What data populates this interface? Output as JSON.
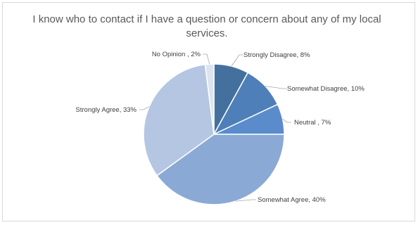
{
  "chart_data": {
    "type": "pie",
    "title": "I know who to contact if I have a question or concern about any of my local services.",
    "slices": [
      {
        "label": "Strongly Disagree, 8%",
        "value": 8,
        "color": "#44709e"
      },
      {
        "label": "Somewhat Disagree, 10%",
        "value": 10,
        "color": "#4f7fb8"
      },
      {
        "label": "Neutral    , 7%",
        "value": 7,
        "color": "#5a8ccc"
      },
      {
        "label": "Somewhat Agree, 40%",
        "value": 40,
        "color": "#8aa9d5"
      },
      {
        "label": "Strongly Agree, 33%",
        "value": 33,
        "color": "#b4c6e2"
      },
      {
        "label": "No Opinion , 2%",
        "value": 2,
        "color": "#dce4f0"
      }
    ]
  }
}
